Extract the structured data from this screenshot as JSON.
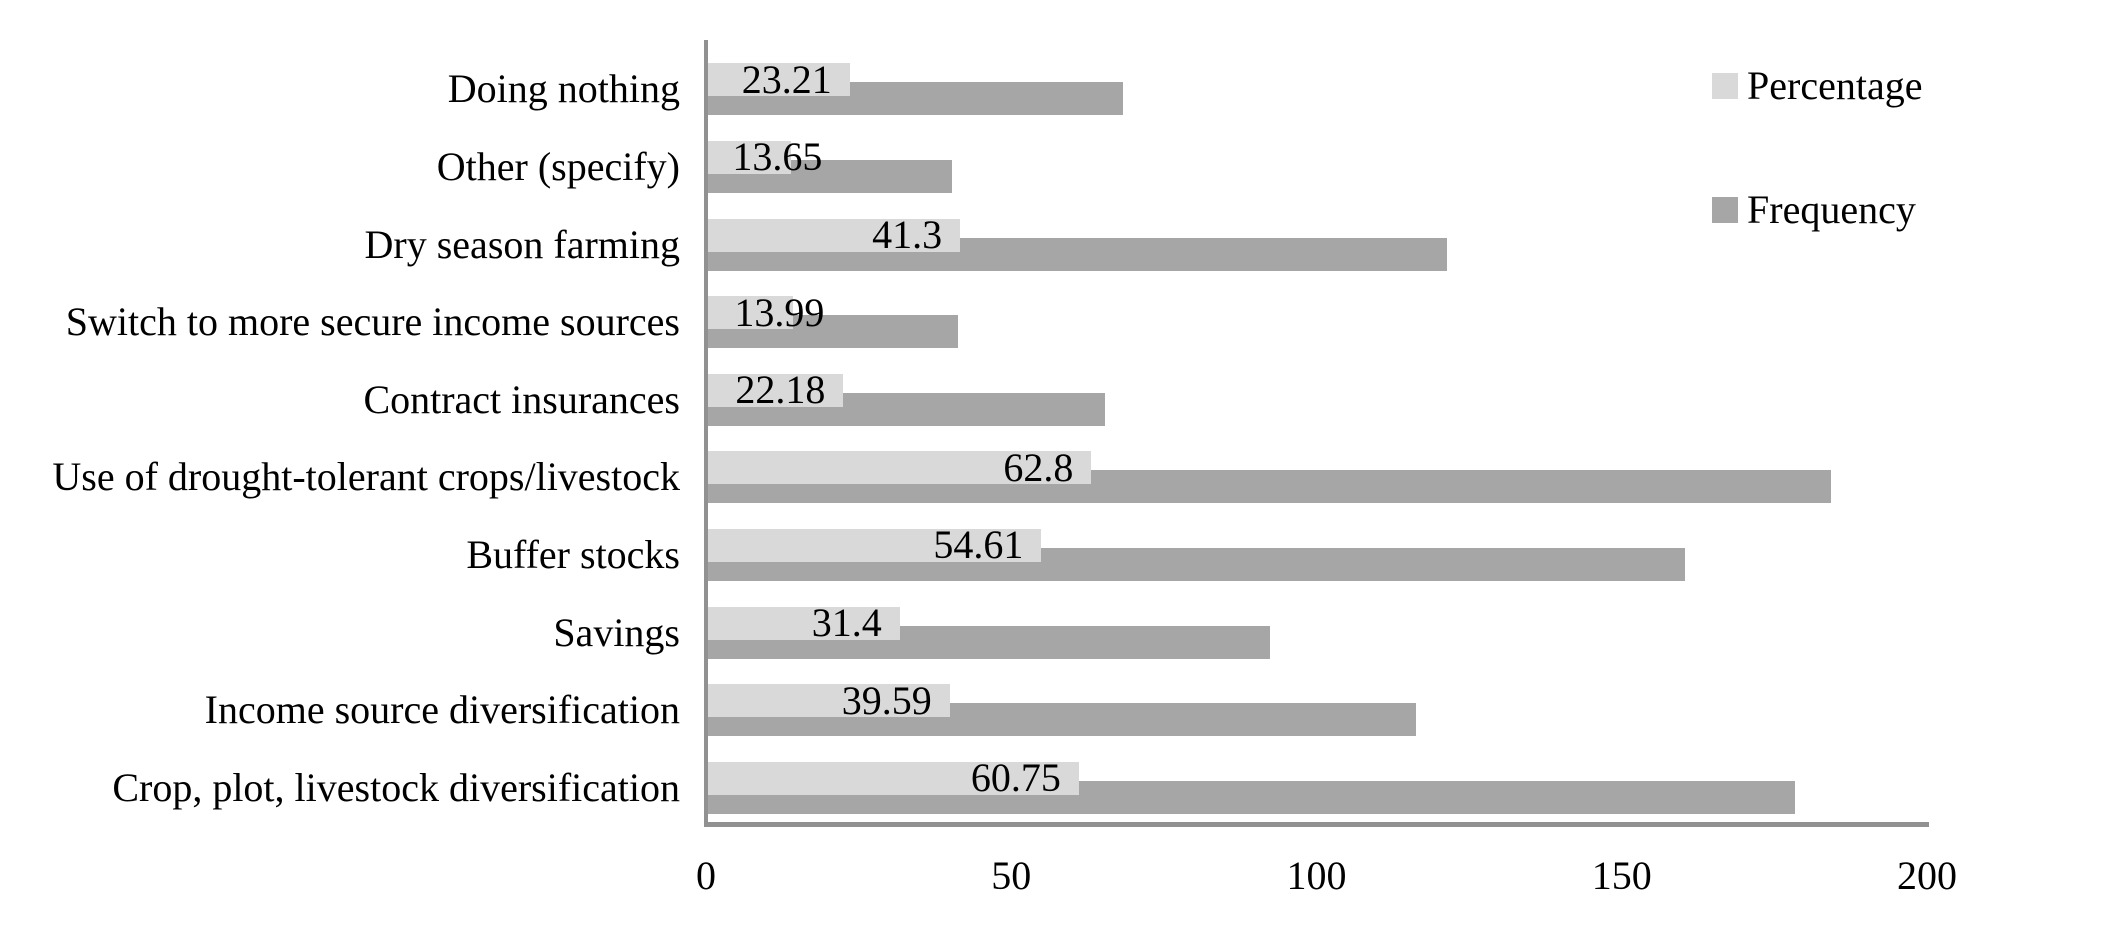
{
  "chart_data": {
    "type": "bar",
    "orientation": "horizontal",
    "title": "",
    "xlabel": "",
    "ylabel": "",
    "categories": [
      "Doing nothing",
      "Other (specify)",
      "Dry season farming",
      "Switch to more secure income sources",
      "Contract insurances",
      "Use of drought-tolerant crops/livestock",
      "Buffer stocks",
      "Savings",
      "Income source diversification",
      "Crop, plot, livestock diversification"
    ],
    "series": [
      {
        "name": "Percentage",
        "color": "#d9d9d9",
        "values": [
          23.21,
          13.65,
          41.3,
          13.99,
          22.18,
          62.8,
          54.61,
          31.4,
          39.59,
          60.75
        ]
      },
      {
        "name": "Frequency",
        "color": "#a6a6a6",
        "values": [
          68,
          40,
          121,
          41,
          65,
          184,
          160,
          92,
          116,
          178
        ]
      }
    ],
    "data_labels": {
      "series": "Percentage",
      "values": [
        "23.21",
        "13.65",
        "41.3",
        "13.99",
        "22.18",
        "62.8",
        "54.61",
        "31.4",
        "39.59",
        "60.75"
      ]
    },
    "xlim": [
      0,
      200
    ],
    "x_ticks": [
      "0",
      "50",
      "100",
      "150",
      "200"
    ],
    "grid": "off",
    "legend_position": "top-right",
    "axis_color": "#919191",
    "text_color": "#000000",
    "background_color": "#ffffff"
  },
  "legend": {
    "items": [
      {
        "label": "Percentage",
        "color": "#d9d9d9"
      },
      {
        "label": "Frequency",
        "color": "#a6a6a6"
      }
    ]
  }
}
